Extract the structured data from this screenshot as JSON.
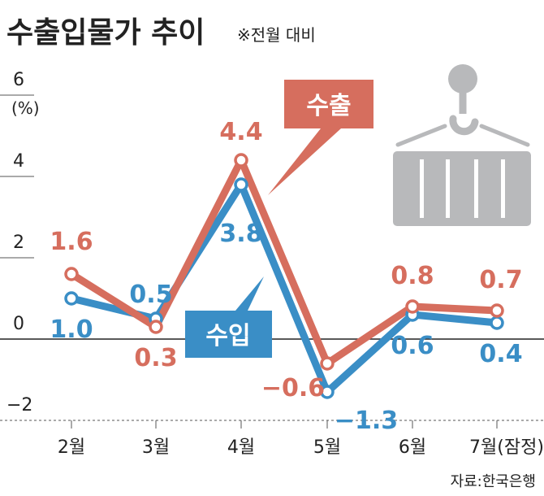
{
  "chart_data": {
    "type": "line",
    "title": "수출입물가 추이",
    "subtitle": "※전월 대비",
    "ylabel": "(%)",
    "ylim": [
      -2,
      6
    ],
    "yticks": [
      "6",
      "4",
      "2",
      "0",
      "−2"
    ],
    "ytick_values": [
      6,
      4,
      2,
      0,
      -2
    ],
    "categories": [
      "2월",
      "3월",
      "4월",
      "5월",
      "6월",
      "7월(잠정)"
    ],
    "series": [
      {
        "name": "수출",
        "values": [
          1.6,
          0.3,
          4.4,
          -0.6,
          0.8,
          0.7
        ],
        "labels": [
          "1.6",
          "0.3",
          "4.4",
          "−0.6",
          "0.8",
          "0.7"
        ],
        "color": "#d66e5e"
      },
      {
        "name": "수입",
        "values": [
          1.0,
          0.5,
          3.8,
          -1.3,
          0.6,
          0.4
        ],
        "labels": [
          "1.0",
          "0.5",
          "3.8",
          "−1.3",
          "0.6",
          "0.4"
        ],
        "color": "#3a8ec6"
      }
    ],
    "source": "자료:한국은행",
    "grid": false,
    "icon": "cargo-container-crane-icon",
    "icon_color": "#b8b9bb"
  }
}
